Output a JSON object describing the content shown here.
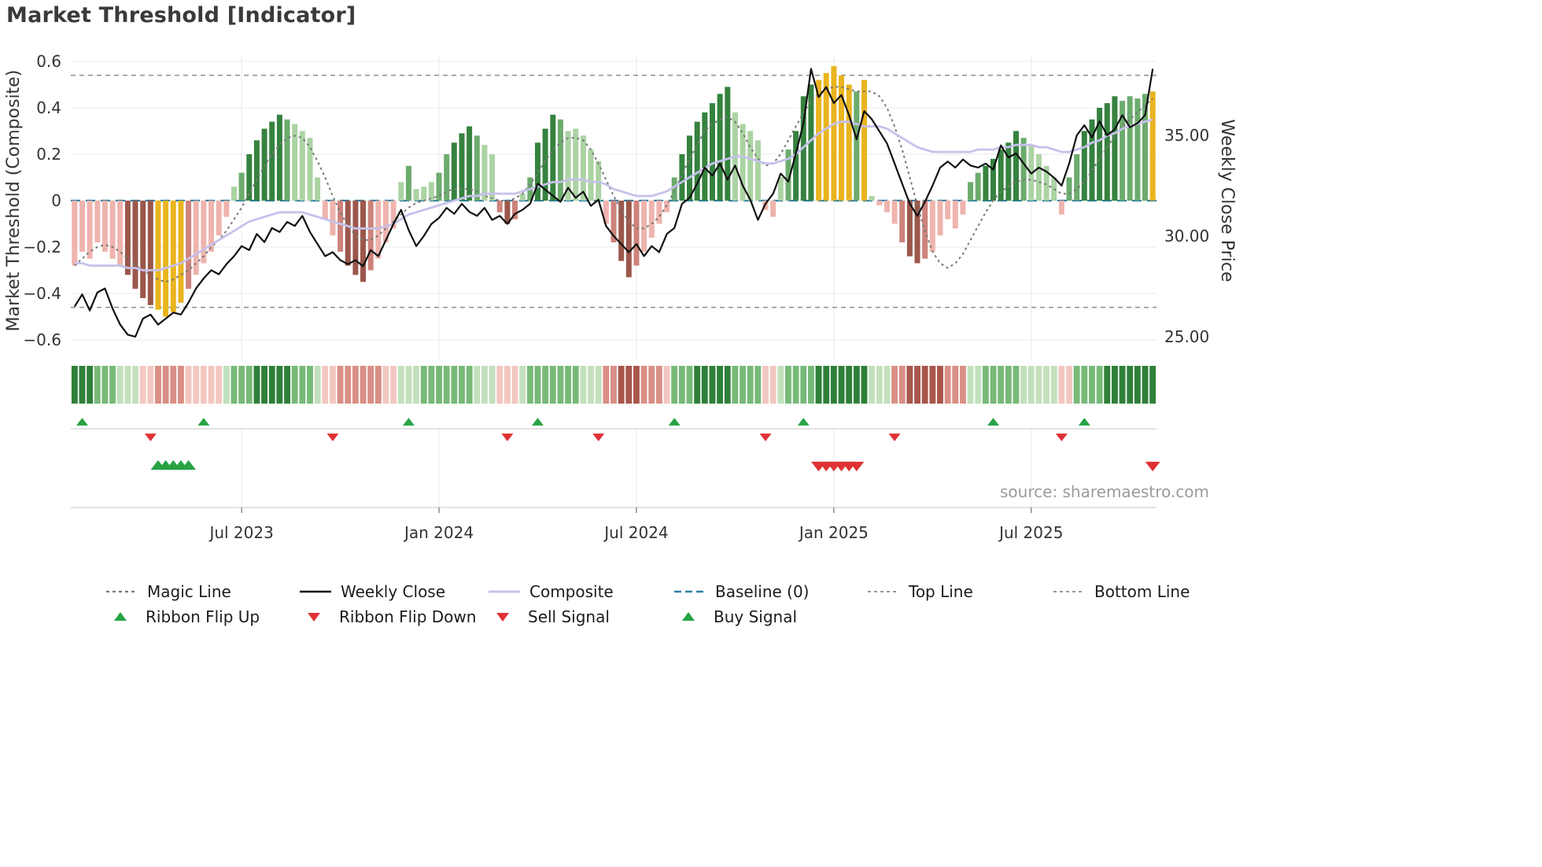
{
  "title": "Market Threshold [Indicator]",
  "source_note": "source: sharemaestro.com",
  "axes": {
    "left_label": "Market Threshold (Composite)",
    "right_label": "Weekly Close Price",
    "left_ticks": [
      "0.6",
      "0.4",
      "0.2",
      "0",
      "−0.2",
      "−0.4",
      "−0.6"
    ],
    "left_tick_values": [
      0.6,
      0.4,
      0.2,
      0,
      -0.2,
      -0.4,
      -0.6
    ],
    "right_ticks": [
      "35.00",
      "30.00",
      "25.00"
    ],
    "right_tick_values": [
      35,
      30,
      25
    ],
    "x_ticks": [
      {
        "label": "Jul 2023",
        "week": 22
      },
      {
        "label": "Jan 2024",
        "week": 48
      },
      {
        "label": "Jul 2024",
        "week": 74
      },
      {
        "label": "Jan 2025",
        "week": 100
      },
      {
        "label": "Jul 2025",
        "week": 126
      }
    ]
  },
  "palette": {
    "bar_colors": {
      "g3": "#35823f",
      "g2": "#6cab6e",
      "g1": "#abd3a3",
      "r1": "#eeb4ad",
      "r2": "#cd837b",
      "r3": "#9b574b",
      "au": "#e9b41f"
    },
    "ribbon_colors": {
      "G3": "#2f8038",
      "G2": "#77ba78",
      "G1": "#c2e0bc",
      "R1": "#f3c7c1",
      "R2": "#d98f86",
      "R3": "#a9564b"
    },
    "lines": {
      "weekly_close": "#111111",
      "composite": "#c6c1ea",
      "magic": "#787878",
      "baseline": "#2e7ea3",
      "top_bottom": "#969696",
      "grid": "#e9e9e9",
      "marker_green": "#27a344",
      "marker_red": "#e03135",
      "axis_text": "#333333",
      "divider": "#c9c9c9"
    }
  },
  "chart_data": {
    "type": "bar",
    "title": "Market Threshold [Indicator]",
    "ylabel_left": "Market Threshold (Composite)",
    "ylabel_right": "Weekly Close Price",
    "ylim_left": [
      -0.6,
      0.6
    ],
    "ylim_right": [
      24.5,
      38.6
    ],
    "x_range": [
      "Feb 2023",
      "Oct 2025"
    ],
    "grid": true,
    "legend_position": "bottom",
    "levels": {
      "top": 0.54,
      "bottom": -0.46,
      "baseline": 0
    },
    "bars": {
      "name": "Composite Threshold Histogram",
      "values": [
        -0.28,
        -0.22,
        -0.25,
        -0.18,
        -0.22,
        -0.25,
        -0.28,
        -0.32,
        -0.38,
        -0.42,
        -0.45,
        -0.47,
        -0.5,
        -0.48,
        -0.44,
        -0.38,
        -0.32,
        -0.27,
        -0.22,
        -0.15,
        -0.07,
        0.06,
        0.12,
        0.2,
        0.26,
        0.31,
        0.34,
        0.37,
        0.35,
        0.33,
        0.3,
        0.27,
        0.1,
        -0.08,
        -0.15,
        -0.22,
        -0.28,
        -0.32,
        -0.35,
        -0.3,
        -0.25,
        -0.18,
        -0.12,
        0.08,
        0.15,
        0.05,
        0.06,
        0.08,
        0.12,
        0.2,
        0.25,
        0.29,
        0.32,
        0.28,
        0.24,
        0.2,
        -0.05,
        -0.1,
        -0.08,
        0.03,
        0.1,
        0.25,
        0.31,
        0.37,
        0.35,
        0.3,
        0.31,
        0.28,
        0.22,
        0.17,
        -0.1,
        -0.18,
        -0.26,
        -0.33,
        -0.28,
        -0.22,
        -0.16,
        -0.1,
        -0.05,
        0.1,
        0.2,
        0.28,
        0.34,
        0.38,
        0.42,
        0.46,
        0.49,
        0.38,
        0.33,
        0.3,
        0.26,
        -0.04,
        -0.07,
        0.1,
        0.22,
        0.3,
        0.45,
        0.5,
        0.52,
        0.55,
        0.58,
        0.54,
        0.5,
        0.47,
        0.52,
        0.02,
        -0.02,
        -0.05,
        -0.1,
        -0.18,
        -0.24,
        -0.27,
        -0.25,
        -0.22,
        -0.15,
        -0.08,
        -0.12,
        -0.06,
        0.08,
        0.12,
        0.15,
        0.18,
        0.22,
        0.25,
        0.3,
        0.27,
        0.24,
        0.2,
        0.15,
        0.1,
        -0.06,
        0.1,
        0.2,
        0.3,
        0.35,
        0.4,
        0.42,
        0.45,
        0.43,
        0.45,
        0.44,
        0.46,
        0.47
      ],
      "colors": [
        "r1",
        "r1",
        "r1",
        "r1",
        "r1",
        "r1",
        "r1",
        "r3",
        "r3",
        "r3",
        "r3",
        "au",
        "au",
        "au",
        "au",
        "r2",
        "r1",
        "r1",
        "r1",
        "r1",
        "r1",
        "g1",
        "g2",
        "g3",
        "g3",
        "g3",
        "g3",
        "g3",
        "g2",
        "g1",
        "g1",
        "g1",
        "g1",
        "r1",
        "r1",
        "r2",
        "r3",
        "r3",
        "r3",
        "r2",
        "r1",
        "r1",
        "r1",
        "g1",
        "g2",
        "g1",
        "g1",
        "g1",
        "g2",
        "g2",
        "g3",
        "g3",
        "g3",
        "g2",
        "g1",
        "g1",
        "r2",
        "r3",
        "r2",
        "g1",
        "g2",
        "g3",
        "g3",
        "g3",
        "g2",
        "g1",
        "g1",
        "g1",
        "g1",
        "g1",
        "r1",
        "r2",
        "r3",
        "r3",
        "r2",
        "r1",
        "r1",
        "r1",
        "r1",
        "g2",
        "g3",
        "g3",
        "g3",
        "g3",
        "g3",
        "g3",
        "g3",
        "g1",
        "g1",
        "g1",
        "g1",
        "r1",
        "r1",
        "g1",
        "g2",
        "g3",
        "g3",
        "g3",
        "au",
        "au",
        "au",
        "au",
        "au",
        "g2",
        "au",
        "g1",
        "r1",
        "r1",
        "r1",
        "r2",
        "r3",
        "r3",
        "r2",
        "r1",
        "r1",
        "r1",
        "r1",
        "r1",
        "g2",
        "g2",
        "g3",
        "g3",
        "g3",
        "g3",
        "g3",
        "g2",
        "g1",
        "g1",
        "g1",
        "g1",
        "r1",
        "g2",
        "g2",
        "g3",
        "g3",
        "g3",
        "g3",
        "g3",
        "g2",
        "g2",
        "g2",
        "g2",
        "au"
      ]
    },
    "magic_line": [
      -0.28,
      -0.25,
      -0.22,
      -0.2,
      -0.19,
      -0.2,
      -0.22,
      -0.25,
      -0.28,
      -0.3,
      -0.32,
      -0.34,
      -0.35,
      -0.34,
      -0.32,
      -0.3,
      -0.27,
      -0.24,
      -0.2,
      -0.17,
      -0.13,
      -0.08,
      -0.03,
      0.03,
      0.09,
      0.15,
      0.2,
      0.24,
      0.27,
      0.28,
      0.27,
      0.23,
      0.17,
      0.1,
      0.02,
      -0.05,
      -0.11,
      -0.15,
      -0.17,
      -0.17,
      -0.15,
      -0.12,
      -0.09,
      -0.06,
      -0.03,
      -0.01,
      0.0,
      0.01,
      0.02,
      0.04,
      0.05,
      0.05,
      0.05,
      0.04,
      0.02,
      0.01,
      0.0,
      0.0,
      0.01,
      0.03,
      0.07,
      0.12,
      0.17,
      0.22,
      0.25,
      0.27,
      0.27,
      0.26,
      0.22,
      0.16,
      0.09,
      0.02,
      -0.04,
      -0.09,
      -0.12,
      -0.12,
      -0.1,
      -0.07,
      -0.02,
      0.04,
      0.11,
      0.18,
      0.24,
      0.3,
      0.33,
      0.35,
      0.36,
      0.34,
      0.29,
      0.23,
      0.18,
      0.15,
      0.16,
      0.2,
      0.26,
      0.32,
      0.38,
      0.43,
      0.46,
      0.48,
      0.49,
      0.49,
      0.48,
      0.47,
      0.47,
      0.47,
      0.45,
      0.4,
      0.32,
      0.22,
      0.1,
      -0.02,
      -0.13,
      -0.22,
      -0.27,
      -0.29,
      -0.27,
      -0.23,
      -0.17,
      -0.11,
      -0.05,
      0.0,
      0.04,
      0.06,
      0.08,
      0.09,
      0.09,
      0.08,
      0.07,
      0.05,
      0.03,
      0.03,
      0.05,
      0.08,
      0.13,
      0.18,
      0.23,
      0.28,
      0.32,
      0.35,
      0.38,
      0.41,
      0.44
    ],
    "composite_line": [
      -0.27,
      -0.27,
      -0.28,
      -0.28,
      -0.28,
      -0.28,
      -0.28,
      -0.29,
      -0.29,
      -0.3,
      -0.3,
      -0.3,
      -0.29,
      -0.28,
      -0.27,
      -0.25,
      -0.23,
      -0.21,
      -0.19,
      -0.17,
      -0.15,
      -0.13,
      -0.11,
      -0.09,
      -0.08,
      -0.07,
      -0.06,
      -0.05,
      -0.05,
      -0.05,
      -0.05,
      -0.06,
      -0.07,
      -0.08,
      -0.09,
      -0.1,
      -0.11,
      -0.12,
      -0.12,
      -0.12,
      -0.12,
      -0.11,
      -0.1,
      -0.08,
      -0.06,
      -0.05,
      -0.04,
      -0.03,
      -0.02,
      -0.01,
      0.0,
      0.01,
      0.02,
      0.02,
      0.03,
      0.03,
      0.03,
      0.03,
      0.03,
      0.04,
      0.05,
      0.06,
      0.07,
      0.08,
      0.08,
      0.09,
      0.09,
      0.09,
      0.08,
      0.08,
      0.07,
      0.05,
      0.04,
      0.03,
      0.02,
      0.02,
      0.02,
      0.03,
      0.04,
      0.06,
      0.08,
      0.1,
      0.12,
      0.14,
      0.16,
      0.17,
      0.18,
      0.19,
      0.19,
      0.18,
      0.17,
      0.16,
      0.16,
      0.17,
      0.18,
      0.2,
      0.23,
      0.26,
      0.29,
      0.31,
      0.33,
      0.34,
      0.34,
      0.33,
      0.32,
      0.32,
      0.32,
      0.31,
      0.29,
      0.27,
      0.25,
      0.23,
      0.22,
      0.21,
      0.21,
      0.21,
      0.21,
      0.21,
      0.21,
      0.22,
      0.22,
      0.22,
      0.23,
      0.23,
      0.24,
      0.24,
      0.24,
      0.23,
      0.23,
      0.22,
      0.21,
      0.21,
      0.22,
      0.23,
      0.25,
      0.26,
      0.28,
      0.29,
      0.31,
      0.32,
      0.33,
      0.34,
      0.35
    ],
    "weekly_close": [
      26.5,
      27.1,
      26.3,
      27.2,
      27.4,
      26.4,
      25.6,
      25.1,
      25.0,
      25.9,
      26.1,
      25.6,
      25.9,
      26.2,
      26.1,
      26.7,
      27.4,
      27.9,
      28.3,
      28.1,
      28.6,
      29.0,
      29.5,
      29.3,
      30.1,
      29.7,
      30.4,
      30.2,
      30.7,
      30.5,
      31.0,
      30.2,
      29.6,
      29.0,
      29.2,
      28.8,
      28.6,
      28.8,
      28.5,
      29.3,
      29.0,
      29.8,
      30.6,
      31.3,
      30.3,
      29.5,
      30.0,
      30.6,
      30.9,
      31.4,
      31.1,
      31.6,
      31.2,
      31.0,
      31.4,
      30.8,
      31.0,
      30.6,
      31.1,
      31.3,
      31.6,
      32.6,
      32.3,
      32.0,
      31.7,
      32.4,
      31.9,
      32.2,
      31.5,
      31.8,
      30.5,
      30.0,
      29.6,
      29.2,
      29.6,
      29.0,
      29.5,
      29.2,
      30.1,
      30.4,
      31.6,
      31.9,
      32.6,
      33.4,
      33.0,
      33.6,
      32.8,
      33.5,
      32.5,
      31.8,
      30.8,
      31.6,
      32.1,
      33.1,
      32.7,
      34.1,
      35.6,
      38.3,
      36.9,
      37.4,
      36.6,
      37.0,
      36.0,
      34.8,
      36.2,
      35.8,
      35.2,
      34.6,
      33.6,
      32.6,
      31.6,
      31.0,
      31.7,
      32.5,
      33.4,
      33.7,
      33.4,
      33.8,
      33.5,
      33.4,
      33.6,
      33.3,
      34.5,
      33.9,
      34.1,
      33.6,
      33.1,
      33.4,
      33.2,
      32.9,
      32.5,
      33.6,
      35.0,
      35.5,
      34.9,
      35.7,
      35.0,
      35.3,
      36.0,
      35.4,
      35.6,
      36.0,
      38.3
    ],
    "ribbon": [
      "G3",
      "G3",
      "G3",
      "G2",
      "G2",
      "G2",
      "G1",
      "G1",
      "G1",
      "R1",
      "R1",
      "R2",
      "R2",
      "R2",
      "R2",
      "R1",
      "R1",
      "R1",
      "R1",
      "R1",
      "G1",
      "G2",
      "G2",
      "G2",
      "G3",
      "G3",
      "G3",
      "G3",
      "G3",
      "G2",
      "G2",
      "G2",
      "G1",
      "R1",
      "R1",
      "R2",
      "R2",
      "R2",
      "R2",
      "R2",
      "R2",
      "R1",
      "R1",
      "G1",
      "G1",
      "G1",
      "G2",
      "G2",
      "G2",
      "G2",
      "G2",
      "G2",
      "G2",
      "G1",
      "G1",
      "G1",
      "R1",
      "R1",
      "R1",
      "G1",
      "G2",
      "G2",
      "G2",
      "G2",
      "G2",
      "G2",
      "G2",
      "G1",
      "G1",
      "G1",
      "R2",
      "R2",
      "R3",
      "R3",
      "R3",
      "R2",
      "R2",
      "R2",
      "R1",
      "G2",
      "G2",
      "G2",
      "G3",
      "G3",
      "G3",
      "G3",
      "G3",
      "G2",
      "G2",
      "G2",
      "G2",
      "R1",
      "R1",
      "G1",
      "G2",
      "G2",
      "G2",
      "G2",
      "G3",
      "G3",
      "G3",
      "G3",
      "G3",
      "G3",
      "G3",
      "G1",
      "G1",
      "G1",
      "R2",
      "R2",
      "R3",
      "R3",
      "R3",
      "R3",
      "R3",
      "R2",
      "R2",
      "R2",
      "G1",
      "G1",
      "G2",
      "G2",
      "G2",
      "G2",
      "G2",
      "G1",
      "G1",
      "G1",
      "G1",
      "G1",
      "R1",
      "R1",
      "G2",
      "G2",
      "G2",
      "G2",
      "G3",
      "G3",
      "G3",
      "G3",
      "G3",
      "G3",
      "G3"
    ],
    "signals": {
      "ribbon_flip_up": [
        1,
        17,
        44,
        61,
        79,
        96,
        121,
        133
      ],
      "ribbon_flip_down": [
        10,
        34,
        57,
        69,
        91,
        108,
        130
      ],
      "buy": [
        11,
        12,
        13,
        14,
        15
      ],
      "sell": [
        98,
        99,
        100,
        101,
        102,
        103,
        142
      ]
    }
  },
  "legend": {
    "row1": [
      {
        "label": "Magic Line",
        "swatch": "magic"
      },
      {
        "label": "Weekly Close",
        "swatch": "close"
      },
      {
        "label": "Composite",
        "swatch": "composite"
      },
      {
        "label": "Baseline (0)",
        "swatch": "baseline"
      },
      {
        "label": "Top Line",
        "swatch": "dashed"
      },
      {
        "label": "Bottom Line",
        "swatch": "dashed"
      }
    ],
    "row2": [
      {
        "label": "Ribbon Flip Up",
        "swatch": "tri-up"
      },
      {
        "label": "Ribbon Flip Down",
        "swatch": "tri-down"
      },
      {
        "label": "Sell Signal",
        "swatch": "tri-down"
      },
      {
        "label": "Buy Signal",
        "swatch": "tri-up"
      }
    ]
  }
}
